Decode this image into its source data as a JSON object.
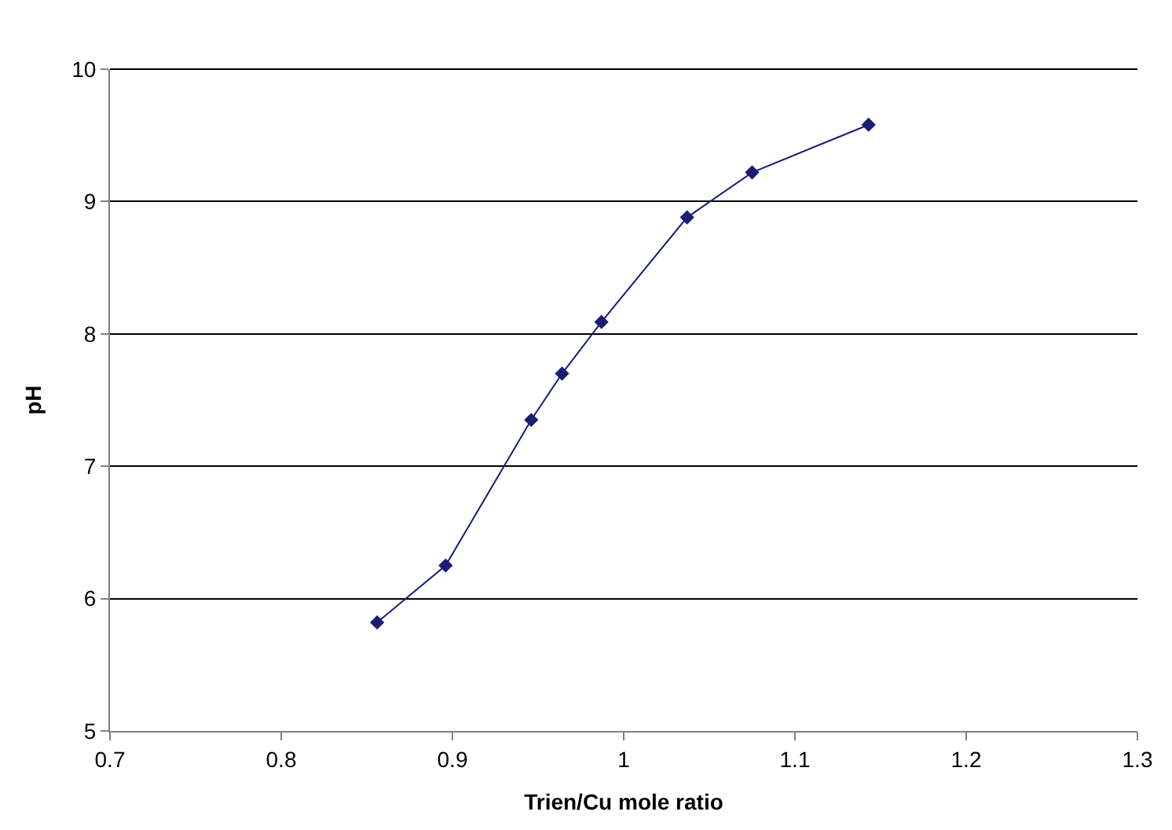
{
  "chart_data": {
    "type": "line",
    "xlabel": "Trien/Cu mole ratio",
    "ylabel": "pH",
    "x": [
      0.856,
      0.896,
      0.946,
      0.964,
      0.987,
      1.037,
      1.075,
      1.143
    ],
    "series": [
      {
        "color": "#1c1c74",
        "values": [
          5.82,
          6.25,
          7.35,
          7.7,
          8.09,
          8.88,
          9.22,
          9.58
        ]
      }
    ],
    "xlim": [
      0.7,
      1.3
    ],
    "xticks": [
      0.7,
      0.8,
      0.9,
      1,
      1.1,
      1.2,
      1.3
    ],
    "ylim": [
      5,
      10
    ],
    "yticks": [
      5,
      6,
      7,
      8,
      9,
      10
    ],
    "grid": "y",
    "marker": "diamond",
    "line_style": "solid",
    "legend": false
  }
}
